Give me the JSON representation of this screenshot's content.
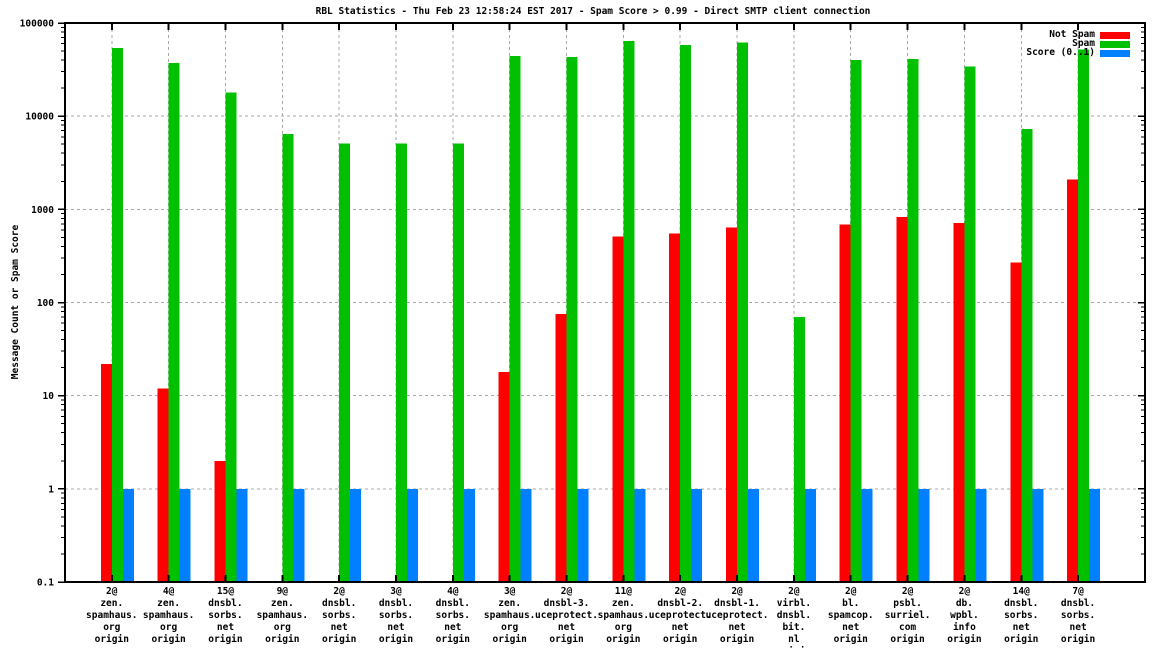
{
  "chart_data": {
    "type": "bar",
    "title": "RBL Statistics - Thu Feb 23 12:58:24 EST 2017 - Spam Score > 0.99 - Direct SMTP client connection",
    "ylabel": "Message Count or Spam Score",
    "yscale": "log",
    "ylim": [
      0.1,
      100000
    ],
    "ytick_labels": [
      "0.1",
      "1",
      "10",
      "100",
      "1000",
      "10000",
      "100000"
    ],
    "grid": true,
    "legend_position": "top-right-inside",
    "categories": [
      [
        "2@",
        "zen.",
        "spamhaus.",
        "org",
        "origin"
      ],
      [
        "4@",
        "zen.",
        "spamhaus.",
        "org",
        "origin"
      ],
      [
        "15@",
        "dnsbl.",
        "sorbs.",
        "net",
        "origin"
      ],
      [
        "9@",
        "zen.",
        "spamhaus.",
        "org",
        "origin"
      ],
      [
        "2@",
        "dnsbl.",
        "sorbs.",
        "net",
        "origin"
      ],
      [
        "3@",
        "dnsbl.",
        "sorbs.",
        "net",
        "origin"
      ],
      [
        "4@",
        "dnsbl.",
        "sorbs.",
        "net",
        "origin"
      ],
      [
        "3@",
        "zen.",
        "spamhaus.",
        "org",
        "origin"
      ],
      [
        "2@",
        "dnsbl-3.",
        "uceprotect.",
        "net",
        "origin"
      ],
      [
        "11@",
        "zen.",
        "spamhaus.",
        "org",
        "origin"
      ],
      [
        "2@",
        "dnsbl-2.",
        "uceprotect.",
        "net",
        "origin"
      ],
      [
        "2@",
        "dnsbl-1.",
        "uceprotect.",
        "net",
        "origin"
      ],
      [
        "2@",
        "virbl.",
        "dnsbl.",
        "bit.",
        "nl",
        "origin"
      ],
      [
        "2@",
        "bl.",
        "spamcop.",
        "net",
        "origin"
      ],
      [
        "2@",
        "psbl.",
        "surriel.",
        "com",
        "origin"
      ],
      [
        "2@",
        "db.",
        "wpbl.",
        "info",
        "origin"
      ],
      [
        "14@",
        "dnsbl.",
        "sorbs.",
        "net",
        "origin"
      ],
      [
        "7@",
        "dnsbl.",
        "sorbs.",
        "net",
        "origin"
      ]
    ],
    "series": [
      {
        "name": "Not Spam",
        "color": "#ff0000",
        "values": [
          22,
          12,
          2,
          0,
          0,
          0,
          0,
          18,
          75,
          510,
          550,
          640,
          0,
          690,
          830,
          710,
          270,
          2100
        ]
      },
      {
        "name": "Spam",
        "color": "#00c000",
        "values": [
          54000,
          37000,
          18000,
          6400,
          5100,
          5100,
          5100,
          44000,
          43000,
          64000,
          58000,
          62000,
          70,
          40000,
          41000,
          34000,
          7300,
          52000
        ]
      },
      {
        "name": "Score (0..1)",
        "color": "#0080ff",
        "values": [
          1,
          1,
          1,
          1,
          1,
          1,
          1,
          1,
          1,
          1,
          1,
          1,
          1,
          1,
          1,
          1,
          1,
          1
        ]
      }
    ]
  },
  "colors": {
    "grid": "#a8a8a8",
    "frame": "#000000",
    "background": "#ffffff"
  }
}
